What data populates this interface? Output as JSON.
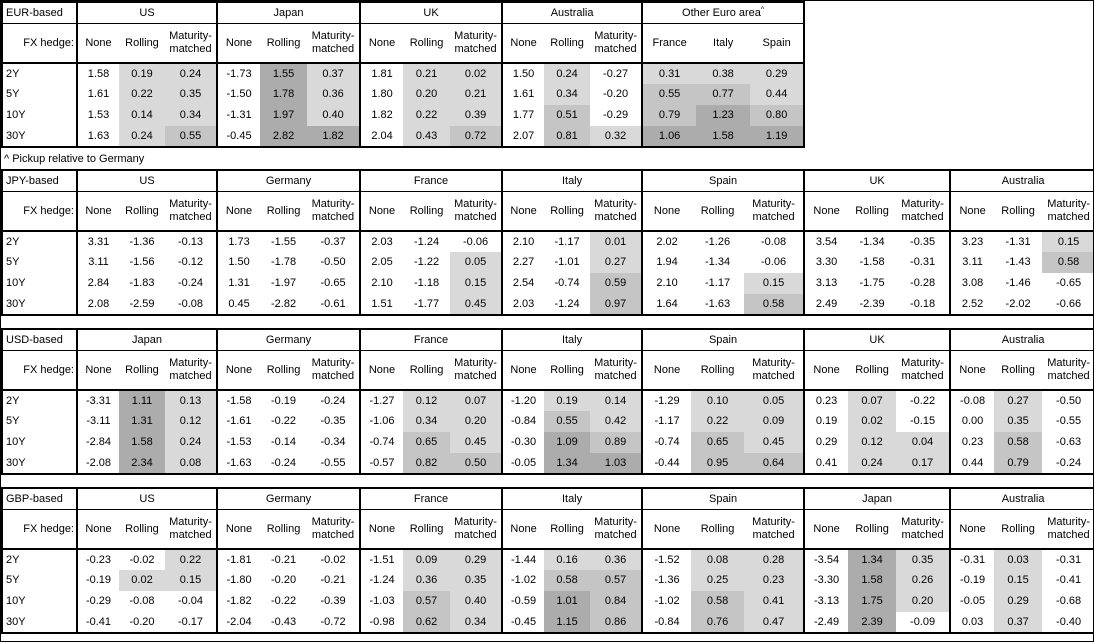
{
  "footnote": "^ Pickup relative to Germany",
  "fx_hedge_label": "FX hedge:",
  "row_labels": [
    "2Y",
    "5Y",
    "10Y",
    "30Y"
  ],
  "hedge_types": [
    "None",
    "Rolling",
    "Maturity-matched"
  ],
  "heatmap": {
    "rule": "positive values in hedged / pickup columns shaded by magnitude",
    "colors": {
      "light": "#d9d9d9",
      "medium": "#c5c5c5",
      "dark": "#acacac"
    },
    "thresholds": [
      0,
      0.5,
      1.0
    ]
  },
  "chart_data": [
    {
      "type": "table",
      "base": "EUR-based",
      "groups": [
        {
          "name": "US",
          "cols": [
            "None",
            "Rolling",
            "Maturity-matched"
          ],
          "rows": [
            [
              "1.58",
              "0.19",
              "0.24"
            ],
            [
              "1.61",
              "0.22",
              "0.35"
            ],
            [
              "1.53",
              "0.14",
              "0.34"
            ],
            [
              "1.63",
              "0.24",
              "0.55"
            ]
          ]
        },
        {
          "name": "Japan",
          "cols": [
            "None",
            "Rolling",
            "Maturity-matched"
          ],
          "rows": [
            [
              "-1.73",
              "1.55",
              "0.37"
            ],
            [
              "-1.50",
              "1.78",
              "0.36"
            ],
            [
              "-1.31",
              "1.97",
              "0.40"
            ],
            [
              "-0.45",
              "2.82",
              "1.82"
            ]
          ]
        },
        {
          "name": "UK",
          "cols": [
            "None",
            "Rolling",
            "Maturity-matched"
          ],
          "rows": [
            [
              "1.81",
              "0.21",
              "0.02"
            ],
            [
              "1.80",
              "0.20",
              "0.21"
            ],
            [
              "1.82",
              "0.22",
              "0.39"
            ],
            [
              "2.04",
              "0.43",
              "0.72"
            ]
          ]
        },
        {
          "name": "Australia",
          "cols": [
            "None",
            "Rolling",
            "Maturity-matched"
          ],
          "rows": [
            [
              "1.50",
              "0.24",
              "-0.27"
            ],
            [
              "1.61",
              "0.34",
              "-0.20"
            ],
            [
              "1.77",
              "0.51",
              "-0.29"
            ],
            [
              "2.07",
              "0.81",
              "0.32"
            ]
          ]
        },
        {
          "name": "Other Euro area",
          "marker": "^",
          "cols": [
            "France",
            "Italy",
            "Spain"
          ],
          "rows": [
            [
              "0.31",
              "0.38",
              "0.29"
            ],
            [
              "0.55",
              "0.77",
              "0.44"
            ],
            [
              "0.79",
              "1.23",
              "0.80"
            ],
            [
              "1.06",
              "1.58",
              "1.19"
            ]
          ]
        }
      ]
    },
    {
      "type": "table",
      "base": "JPY-based",
      "groups": [
        {
          "name": "US",
          "cols": [
            "None",
            "Rolling",
            "Maturity-matched"
          ],
          "rows": [
            [
              "3.31",
              "-1.36",
              "-0.13"
            ],
            [
              "3.11",
              "-1.56",
              "-0.12"
            ],
            [
              "2.84",
              "-1.83",
              "-0.24"
            ],
            [
              "2.08",
              "-2.59",
              "-0.08"
            ]
          ]
        },
        {
          "name": "Germany",
          "cols": [
            "None",
            "Rolling",
            "Maturity-matched"
          ],
          "rows": [
            [
              "1.73",
              "-1.55",
              "-0.37"
            ],
            [
              "1.50",
              "-1.78",
              "-0.50"
            ],
            [
              "1.31",
              "-1.97",
              "-0.65"
            ],
            [
              "0.45",
              "-2.82",
              "-0.61"
            ]
          ]
        },
        {
          "name": "France",
          "cols": [
            "None",
            "Rolling",
            "Maturity-matched"
          ],
          "rows": [
            [
              "2.03",
              "-1.24",
              "-0.06"
            ],
            [
              "2.05",
              "-1.22",
              "0.05"
            ],
            [
              "2.10",
              "-1.18",
              "0.15"
            ],
            [
              "1.51",
              "-1.77",
              "0.45"
            ]
          ]
        },
        {
          "name": "Italy",
          "cols": [
            "None",
            "Rolling",
            "Maturity-matched"
          ],
          "rows": [
            [
              "2.10",
              "-1.17",
              "0.01"
            ],
            [
              "2.27",
              "-1.01",
              "0.27"
            ],
            [
              "2.54",
              "-0.74",
              "0.59"
            ],
            [
              "2.03",
              "-1.24",
              "0.97"
            ]
          ]
        },
        {
          "name": "Spain",
          "cols": [
            "None",
            "Rolling",
            "Maturity-matched"
          ],
          "rows": [
            [
              "2.02",
              "-1.26",
              "-0.08"
            ],
            [
              "1.94",
              "-1.34",
              "-0.06"
            ],
            [
              "2.10",
              "-1.17",
              "0.15"
            ],
            [
              "1.64",
              "-1.63",
              "0.58"
            ]
          ]
        },
        {
          "name": "UK",
          "cols": [
            "None",
            "Rolling",
            "Maturity-matched"
          ],
          "rows": [
            [
              "3.54",
              "-1.34",
              "-0.35"
            ],
            [
              "3.30",
              "-1.58",
              "-0.31"
            ],
            [
              "3.13",
              "-1.75",
              "-0.28"
            ],
            [
              "2.49",
              "-2.39",
              "-0.18"
            ]
          ]
        },
        {
          "name": "Australia",
          "cols": [
            "None",
            "Rolling",
            "Maturity-matched"
          ],
          "rows": [
            [
              "3.23",
              "-1.31",
              "0.15"
            ],
            [
              "3.11",
              "-1.43",
              "0.58"
            ],
            [
              "3.08",
              "-1.46",
              "-0.65"
            ],
            [
              "2.52",
              "-2.02",
              "-0.66"
            ]
          ]
        }
      ]
    },
    {
      "type": "table",
      "base": "USD-based",
      "groups": [
        {
          "name": "Japan",
          "cols": [
            "None",
            "Rolling",
            "Maturity-matched"
          ],
          "rows": [
            [
              "-3.31",
              "1.11",
              "0.13"
            ],
            [
              "-3.11",
              "1.31",
              "0.12"
            ],
            [
              "-2.84",
              "1.58",
              "0.24"
            ],
            [
              "-2.08",
              "2.34",
              "0.08"
            ]
          ]
        },
        {
          "name": "Germany",
          "cols": [
            "None",
            "Rolling",
            "Maturity-matched"
          ],
          "rows": [
            [
              "-1.58",
              "-0.19",
              "-0.24"
            ],
            [
              "-1.61",
              "-0.22",
              "-0.35"
            ],
            [
              "-1.53",
              "-0.14",
              "-0.34"
            ],
            [
              "-1.63",
              "-0.24",
              "-0.55"
            ]
          ]
        },
        {
          "name": "France",
          "cols": [
            "None",
            "Rolling",
            "Maturity-matched"
          ],
          "rows": [
            [
              "-1.27",
              "0.12",
              "0.07"
            ],
            [
              "-1.06",
              "0.34",
              "0.20"
            ],
            [
              "-0.74",
              "0.65",
              "0.45"
            ],
            [
              "-0.57",
              "0.82",
              "0.50"
            ]
          ]
        },
        {
          "name": "Italy",
          "cols": [
            "None",
            "Rolling",
            "Maturity-matched"
          ],
          "rows": [
            [
              "-1.20",
              "0.19",
              "0.14"
            ],
            [
              "-0.84",
              "0.55",
              "0.42"
            ],
            [
              "-0.30",
              "1.09",
              "0.89"
            ],
            [
              "-0.05",
              "1.34",
              "1.03"
            ]
          ]
        },
        {
          "name": "Spain",
          "cols": [
            "None",
            "Rolling",
            "Maturity-matched"
          ],
          "rows": [
            [
              "-1.29",
              "0.10",
              "0.05"
            ],
            [
              "-1.17",
              "0.22",
              "0.09"
            ],
            [
              "-0.74",
              "0.65",
              "0.45"
            ],
            [
              "-0.44",
              "0.95",
              "0.64"
            ]
          ]
        },
        {
          "name": "UK",
          "cols": [
            "None",
            "Rolling",
            "Maturity-matched"
          ],
          "rows": [
            [
              "0.23",
              "0.07",
              "-0.22"
            ],
            [
              "0.19",
              "0.02",
              "-0.15"
            ],
            [
              "0.29",
              "0.12",
              "0.04"
            ],
            [
              "0.41",
              "0.24",
              "0.17"
            ]
          ]
        },
        {
          "name": "Australia",
          "cols": [
            "None",
            "Rolling",
            "Maturity-matched"
          ],
          "rows": [
            [
              "-0.08",
              "0.27",
              "-0.50"
            ],
            [
              "0.00",
              "0.35",
              "-0.55"
            ],
            [
              "0.23",
              "0.58",
              "-0.63"
            ],
            [
              "0.44",
              "0.79",
              "-0.24"
            ]
          ]
        }
      ]
    },
    {
      "type": "table",
      "base": "GBP-based",
      "groups": [
        {
          "name": "US",
          "cols": [
            "None",
            "Rolling",
            "Maturity-matched"
          ],
          "rows": [
            [
              "-0.23",
              "-0.02",
              "0.22"
            ],
            [
              "-0.19",
              "0.02",
              "0.15"
            ],
            [
              "-0.29",
              "-0.08",
              "-0.04"
            ],
            [
              "-0.41",
              "-0.20",
              "-0.17"
            ]
          ]
        },
        {
          "name": "Germany",
          "cols": [
            "None",
            "Rolling",
            "Maturity-matched"
          ],
          "rows": [
            [
              "-1.81",
              "-0.21",
              "-0.02"
            ],
            [
              "-1.80",
              "-0.20",
              "-0.21"
            ],
            [
              "-1.82",
              "-0.22",
              "-0.39"
            ],
            [
              "-2.04",
              "-0.43",
              "-0.72"
            ]
          ]
        },
        {
          "name": "France",
          "cols": [
            "None",
            "Rolling",
            "Maturity-matched"
          ],
          "rows": [
            [
              "-1.51",
              "0.09",
              "0.29"
            ],
            [
              "-1.24",
              "0.36",
              "0.35"
            ],
            [
              "-1.03",
              "0.57",
              "0.40"
            ],
            [
              "-0.98",
              "0.62",
              "0.34"
            ]
          ]
        },
        {
          "name": "Italy",
          "cols": [
            "None",
            "Rolling",
            "Maturity-matched"
          ],
          "rows": [
            [
              "-1.44",
              "0.16",
              "0.36"
            ],
            [
              "-1.02",
              "0.58",
              "0.57"
            ],
            [
              "-0.59",
              "1.01",
              "0.84"
            ],
            [
              "-0.45",
              "1.15",
              "0.86"
            ]
          ]
        },
        {
          "name": "Spain",
          "cols": [
            "None",
            "Rolling",
            "Maturity-matched"
          ],
          "rows": [
            [
              "-1.52",
              "0.08",
              "0.28"
            ],
            [
              "-1.36",
              "0.25",
              "0.23"
            ],
            [
              "-1.02",
              "0.58",
              "0.41"
            ],
            [
              "-0.84",
              "0.76",
              "0.47"
            ]
          ]
        },
        {
          "name": "Japan",
          "cols": [
            "None",
            "Rolling",
            "Maturity-matched"
          ],
          "rows": [
            [
              "-3.54",
              "1.34",
              "0.35"
            ],
            [
              "-3.30",
              "1.58",
              "0.26"
            ],
            [
              "-3.13",
              "1.75",
              "0.20"
            ],
            [
              "-2.49",
              "2.39",
              "-0.09"
            ]
          ]
        },
        {
          "name": "Australia",
          "cols": [
            "None",
            "Rolling",
            "Maturity-matched"
          ],
          "rows": [
            [
              "-0.31",
              "0.03",
              "-0.31"
            ],
            [
              "-0.19",
              "0.15",
              "-0.41"
            ],
            [
              "-0.05",
              "0.29",
              "-0.68"
            ],
            [
              "0.03",
              "0.37",
              "-0.40"
            ]
          ]
        }
      ]
    }
  ]
}
